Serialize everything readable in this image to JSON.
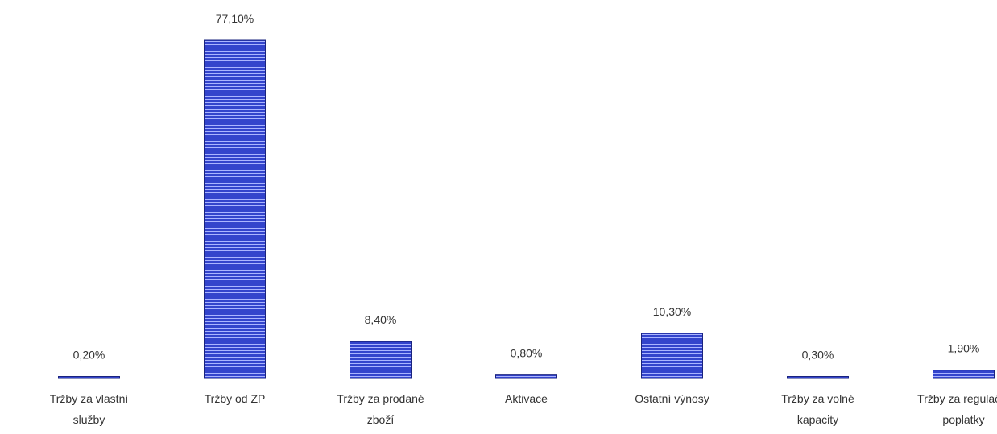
{
  "chart_data": {
    "type": "bar",
    "title": "",
    "xlabel": "",
    "ylabel": "",
    "ylim": [
      0,
      80
    ],
    "grid": false,
    "legend": "none",
    "bar_color": "#3344cc",
    "bar_edge_color": "#1a237e",
    "categories": [
      [
        "Tržby za vlastní",
        "služby"
      ],
      [
        "Tržby od ZP"
      ],
      [
        "Tržby za prodané",
        "zboží"
      ],
      [
        "Aktivace"
      ],
      [
        "Ostatní výnosy"
      ],
      [
        "Tržby za volné",
        "kapacity"
      ],
      [
        "Tržby za regulační",
        "poplatky"
      ]
    ],
    "values": [
      0.2,
      77.1,
      8.4,
      0.8,
      10.3,
      0.3,
      1.9
    ],
    "value_labels": [
      "0,20%",
      "77,10%",
      "8,40%",
      "0,80%",
      "10,30%",
      "0,30%",
      "1,90%"
    ]
  }
}
